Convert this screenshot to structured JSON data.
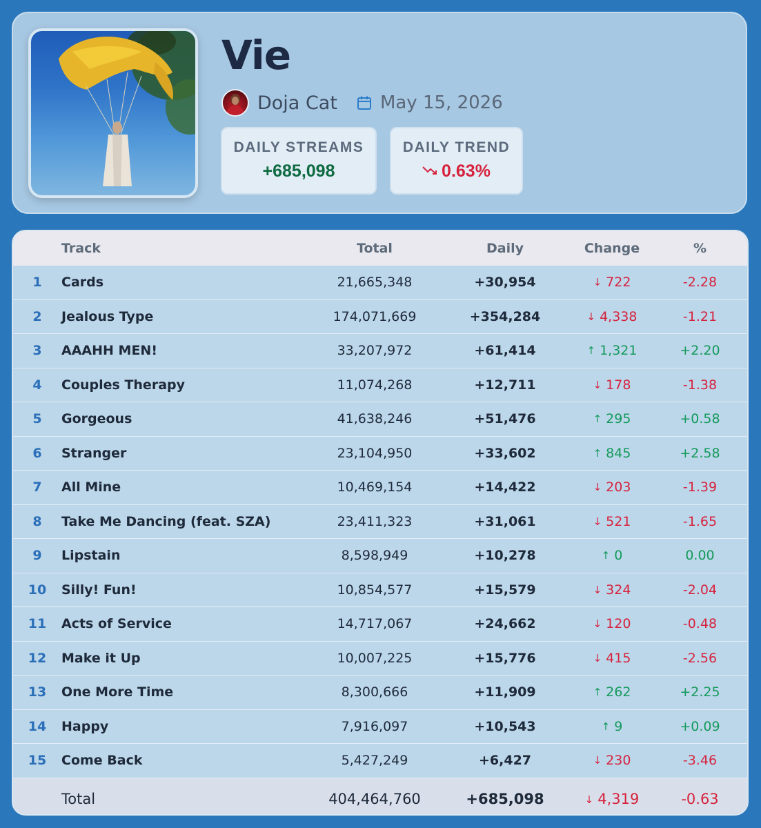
{
  "album": {
    "title": "Vie",
    "artist": "Doja Cat",
    "release_date": "May 15, 2026",
    "cover_icon": "album-cover-art",
    "avatar_icon": "artist-avatar"
  },
  "stats": {
    "daily_streams_label": "DAILY STREAMS",
    "daily_streams_value": "+685,098",
    "daily_trend_label": "DAILY TREND",
    "daily_trend_value": "0.63%",
    "trend_icon": "trend-down-icon",
    "positive_color": "#0e6a40",
    "negative_color": "#d6233d"
  },
  "table": {
    "headers": {
      "num": "",
      "track": "Track",
      "total": "Total",
      "daily": "Daily",
      "change": "Change",
      "pct": "%"
    },
    "rows": [
      {
        "num": "1",
        "track": "Cards",
        "total": "21,665,348",
        "daily": "+30,954",
        "change": "722",
        "dir": "down",
        "pct": "-2.28"
      },
      {
        "num": "2",
        "track": "Jealous Type",
        "total": "174,071,669",
        "daily": "+354,284",
        "change": "4,338",
        "dir": "down",
        "pct": "-1.21"
      },
      {
        "num": "3",
        "track": "AAAHH MEN!",
        "total": "33,207,972",
        "daily": "+61,414",
        "change": "1,321",
        "dir": "up",
        "pct": "+2.20"
      },
      {
        "num": "4",
        "track": "Couples Therapy",
        "total": "11,074,268",
        "daily": "+12,711",
        "change": "178",
        "dir": "down",
        "pct": "-1.38"
      },
      {
        "num": "5",
        "track": "Gorgeous",
        "total": "41,638,246",
        "daily": "+51,476",
        "change": "295",
        "dir": "up",
        "pct": "+0.58"
      },
      {
        "num": "6",
        "track": "Stranger",
        "total": "23,104,950",
        "daily": "+33,602",
        "change": "845",
        "dir": "up",
        "pct": "+2.58"
      },
      {
        "num": "7",
        "track": "All Mine",
        "total": "10,469,154",
        "daily": "+14,422",
        "change": "203",
        "dir": "down",
        "pct": "-1.39"
      },
      {
        "num": "8",
        "track": "Take Me Dancing (feat. SZA)",
        "total": "23,411,323",
        "daily": "+31,061",
        "change": "521",
        "dir": "down",
        "pct": "-1.65"
      },
      {
        "num": "9",
        "track": "Lipstain",
        "total": "8,598,949",
        "daily": "+10,278",
        "change": "0",
        "dir": "up",
        "pct": "0.00"
      },
      {
        "num": "10",
        "track": "Silly! Fun!",
        "total": "10,854,577",
        "daily": "+15,579",
        "change": "324",
        "dir": "down",
        "pct": "-2.04"
      },
      {
        "num": "11",
        "track": "Acts of Service",
        "total": "14,717,067",
        "daily": "+24,662",
        "change": "120",
        "dir": "down",
        "pct": "-0.48"
      },
      {
        "num": "12",
        "track": "Make it Up",
        "total": "10,007,225",
        "daily": "+15,776",
        "change": "415",
        "dir": "down",
        "pct": "-2.56"
      },
      {
        "num": "13",
        "track": "One More Time",
        "total": "8,300,666",
        "daily": "+11,909",
        "change": "262",
        "dir": "up",
        "pct": "+2.25"
      },
      {
        "num": "14",
        "track": "Happy",
        "total": "7,916,097",
        "daily": "+10,543",
        "change": "9",
        "dir": "up",
        "pct": "+0.09"
      },
      {
        "num": "15",
        "track": "Come Back",
        "total": "5,427,249",
        "daily": "+6,427",
        "change": "230",
        "dir": "down",
        "pct": "-3.46"
      }
    ],
    "footer": {
      "label": "Total",
      "total": "404,464,760",
      "daily": "+685,098",
      "change": "4,319",
      "dir": "down",
      "pct": "-0.63"
    }
  }
}
